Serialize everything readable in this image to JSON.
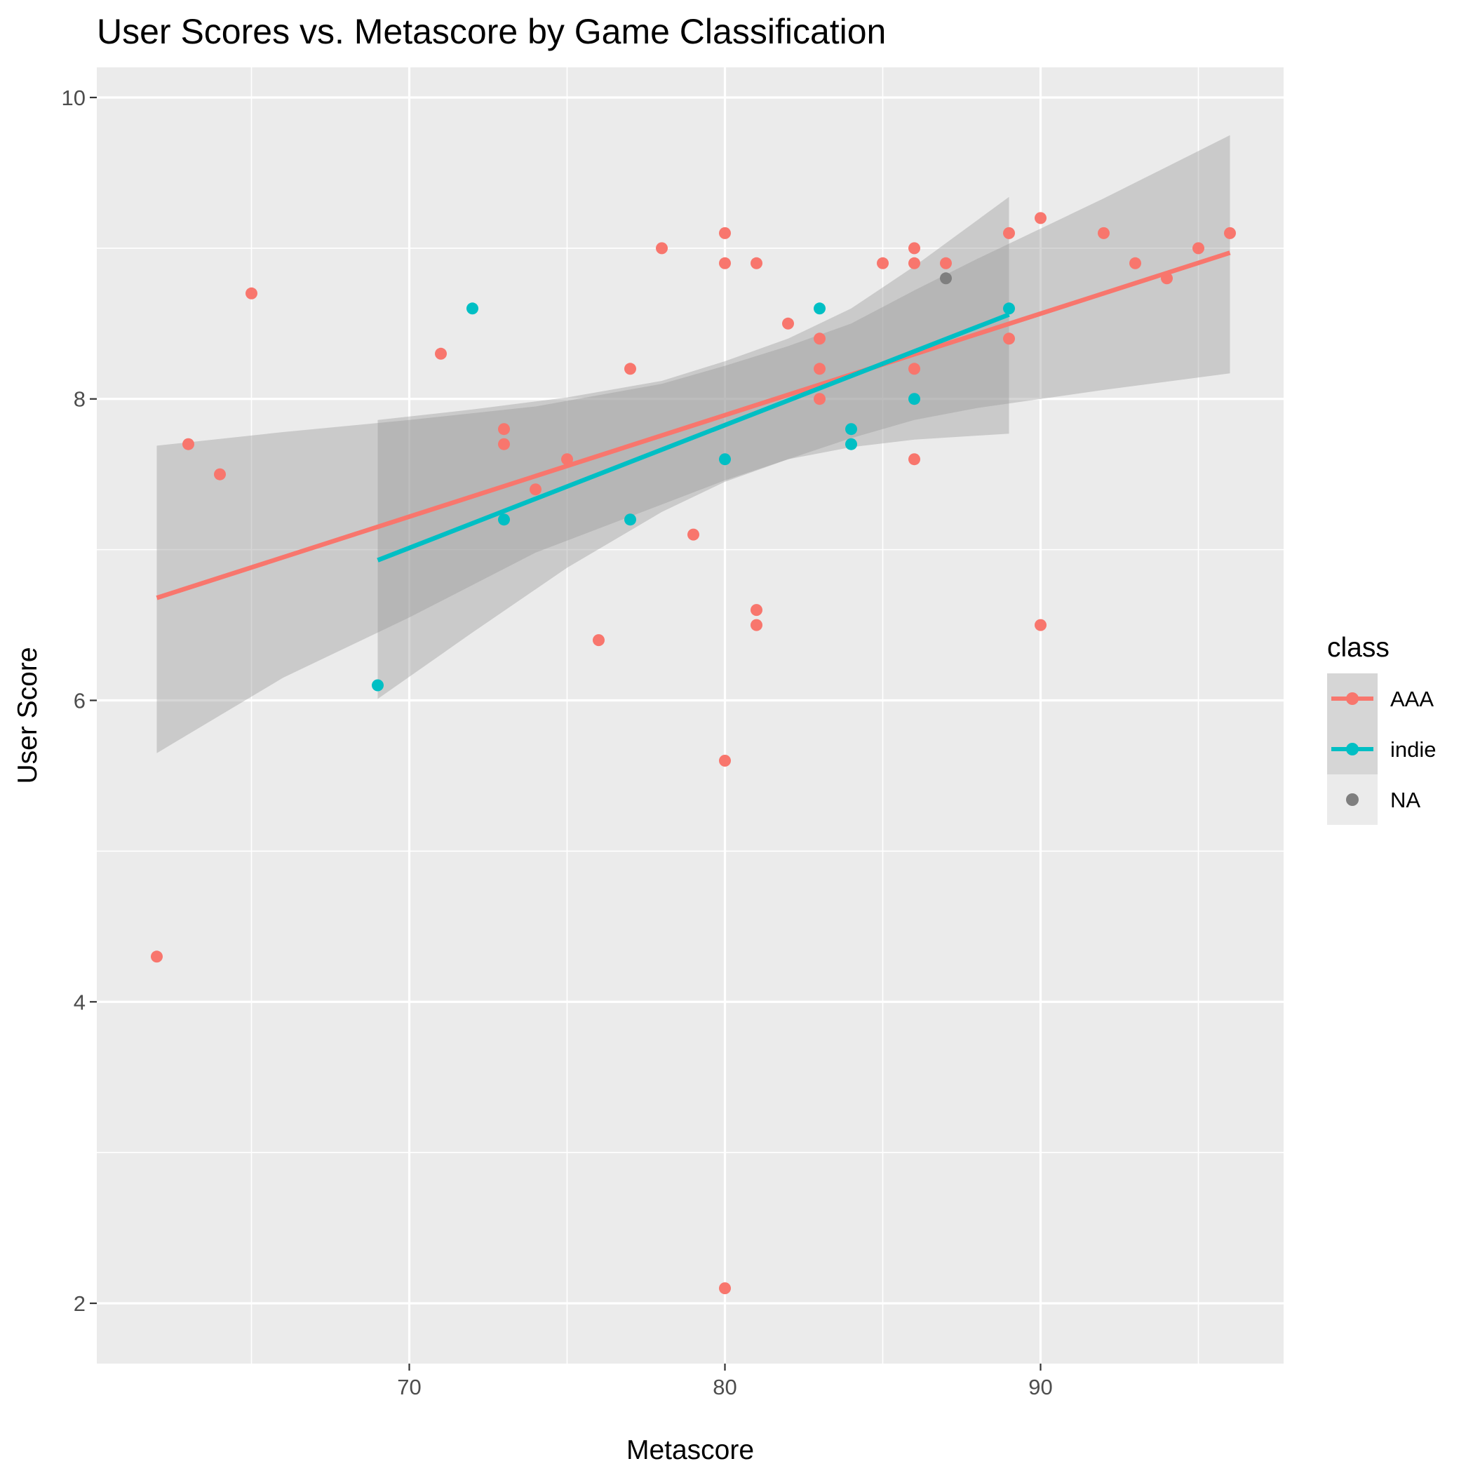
{
  "chart_data": {
    "type": "scatter",
    "title": "User Scores vs. Metascore by Game Classification",
    "xlabel": "Metascore",
    "ylabel": "User Score",
    "xlim": [
      60.1,
      97.7
    ],
    "ylim": [
      1.6,
      10.2
    ],
    "x_ticks": [
      70,
      80,
      90
    ],
    "x_minor": [
      65,
      75,
      85,
      95
    ],
    "y_ticks": [
      2,
      4,
      6,
      8,
      10
    ],
    "y_minor": [
      3,
      5,
      7,
      9
    ],
    "grid": true,
    "legend": {
      "title": "class",
      "position": "right",
      "entries": [
        {
          "label": "AAA",
          "color": "#F8766D"
        },
        {
          "label": "indie",
          "color": "#00BFC4"
        },
        {
          "label": "NA",
          "color": "#7F7F7F"
        }
      ]
    },
    "series": [
      {
        "name": "AAA",
        "color": "#F8766D",
        "points": [
          [
            62,
            4.3
          ],
          [
            63,
            7.7
          ],
          [
            64,
            7.5
          ],
          [
            65,
            8.7
          ],
          [
            71,
            8.3
          ],
          [
            73,
            7.8
          ],
          [
            73,
            7.7
          ],
          [
            74,
            7.4
          ],
          [
            75,
            7.6
          ],
          [
            76,
            6.4
          ],
          [
            77,
            8.2
          ],
          [
            78,
            9.0
          ],
          [
            79,
            7.1
          ],
          [
            80,
            9.1
          ],
          [
            80,
            8.9
          ],
          [
            80,
            5.6
          ],
          [
            80,
            2.1
          ],
          [
            81,
            8.9
          ],
          [
            81,
            6.6
          ],
          [
            81,
            6.5
          ],
          [
            82,
            8.5
          ],
          [
            83,
            8.4
          ],
          [
            83,
            8.2
          ],
          [
            83,
            8.0
          ],
          [
            85,
            8.9
          ],
          [
            86,
            9.0
          ],
          [
            86,
            8.9
          ],
          [
            86,
            8.2
          ],
          [
            86,
            7.6
          ],
          [
            87,
            8.9
          ],
          [
            89,
            9.1
          ],
          [
            89,
            8.4
          ],
          [
            90,
            9.2
          ],
          [
            90,
            6.5
          ],
          [
            92,
            9.1
          ],
          [
            93,
            8.9
          ],
          [
            94,
            8.8
          ],
          [
            95,
            9.0
          ],
          [
            96,
            9.1
          ]
        ],
        "fit": {
          "x": [
            62,
            96
          ],
          "y": [
            6.68,
            8.97
          ]
        },
        "band": {
          "x": [
            62,
            66,
            70,
            74,
            78,
            80,
            82,
            84,
            86,
            88,
            92,
            96
          ],
          "lower": [
            5.65,
            6.15,
            6.55,
            6.98,
            7.3,
            7.46,
            7.6,
            7.74,
            7.86,
            7.94,
            8.06,
            8.17
          ],
          "upper": [
            7.69,
            7.78,
            7.86,
            7.95,
            8.1,
            8.22,
            8.35,
            8.5,
            8.72,
            8.93,
            9.33,
            9.75
          ]
        }
      },
      {
        "name": "indie",
        "color": "#00BFC4",
        "points": [
          [
            69,
            6.1
          ],
          [
            72,
            8.6
          ],
          [
            73,
            7.2
          ],
          [
            77,
            7.2
          ],
          [
            80,
            7.6
          ],
          [
            83,
            8.6
          ],
          [
            84,
            7.8
          ],
          [
            84,
            7.7
          ],
          [
            86,
            8.0
          ],
          [
            89,
            8.6
          ]
        ],
        "fit": {
          "x": [
            69,
            89
          ],
          "y": [
            6.93,
            8.56
          ]
        },
        "band": {
          "x": [
            69,
            72,
            75,
            78,
            80,
            82,
            84,
            86,
            89
          ],
          "lower": [
            6.01,
            6.45,
            6.88,
            7.25,
            7.45,
            7.6,
            7.68,
            7.73,
            7.77
          ],
          "upper": [
            7.86,
            7.93,
            8.01,
            8.12,
            8.25,
            8.4,
            8.6,
            8.88,
            9.34
          ]
        }
      },
      {
        "name": "NA",
        "color": "#7F7F7F",
        "points": [
          [
            87,
            8.8
          ]
        ]
      }
    ]
  }
}
